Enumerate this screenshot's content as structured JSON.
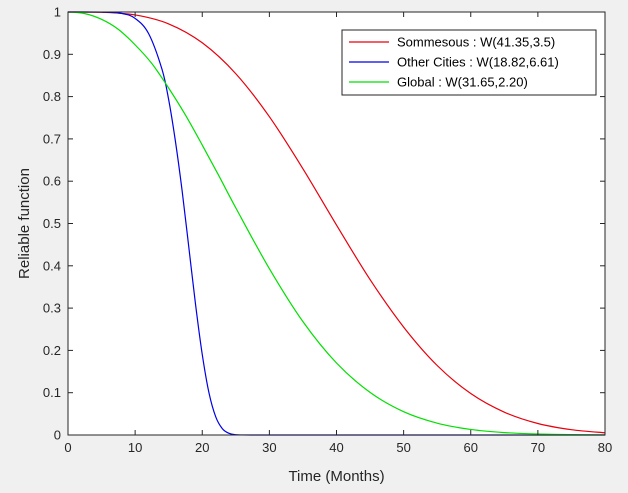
{
  "chart_data": {
    "type": "line",
    "xlabel": "Time (Months)",
    "ylabel": "Reliable function",
    "xlim": [
      0,
      80
    ],
    "ylim": [
      0,
      1
    ],
    "xticks": [
      0,
      10,
      20,
      30,
      40,
      50,
      60,
      70,
      80
    ],
    "yticks": [
      0,
      0.1,
      0.2,
      0.3,
      0.4,
      0.5,
      0.6,
      0.7,
      0.8,
      0.9,
      1
    ],
    "grid": false,
    "legend_position": "top-right",
    "series": [
      {
        "name": "Sommesous : W(41.35,3.5)",
        "color": "#e8000b",
        "x": [
          0,
          5,
          10,
          15,
          20,
          25,
          30,
          35,
          40,
          45,
          50,
          55,
          60,
          65,
          70,
          75,
          80
        ],
        "y": [
          1.0,
          0.9994,
          0.993,
          0.9719,
          0.9272,
          0.8541,
          0.7525,
          0.6294,
          0.4964,
          0.3675,
          0.2551,
          0.1643,
          0.098,
          0.054,
          0.0272,
          0.0126,
          0.0053
        ]
      },
      {
        "name": "Other Cities : W(18.82,6.61)",
        "color": "#0000e6",
        "x": [
          0,
          5,
          8,
          10,
          12,
          14,
          15,
          16,
          17,
          18,
          19,
          20,
          21,
          22,
          23,
          24,
          25,
          26,
          28,
          30,
          40,
          50,
          60,
          70,
          80
        ],
        "y": [
          1.0,
          0.9998,
          0.9966,
          0.9848,
          0.9492,
          0.8647,
          0.7925,
          0.6947,
          0.5775,
          0.4437,
          0.3086,
          0.1904,
          0.0998,
          0.0433,
          0.0149,
          0.0039,
          0.0007,
          0.0001,
          0.0,
          0.0,
          0.0,
          0.0,
          0.0,
          0.0,
          0.0
        ]
      },
      {
        "name": "Global : W(31.65,2.20)",
        "color": "#00e000",
        "x": [
          0,
          2.5,
          5,
          7.5,
          10,
          12.5,
          15,
          17.5,
          20,
          22.5,
          25,
          30,
          35,
          40,
          45,
          50,
          55,
          60,
          65,
          70,
          75,
          80
        ],
        "y": [
          1.0,
          0.9962,
          0.9827,
          0.959,
          0.9223,
          0.878,
          0.82,
          0.7563,
          0.6855,
          0.6121,
          0.537,
          0.3932,
          0.268,
          0.1702,
          0.1007,
          0.0551,
          0.028,
          0.0131,
          0.0057,
          0.0023,
          0.0008,
          0.0003
        ]
      }
    ]
  }
}
